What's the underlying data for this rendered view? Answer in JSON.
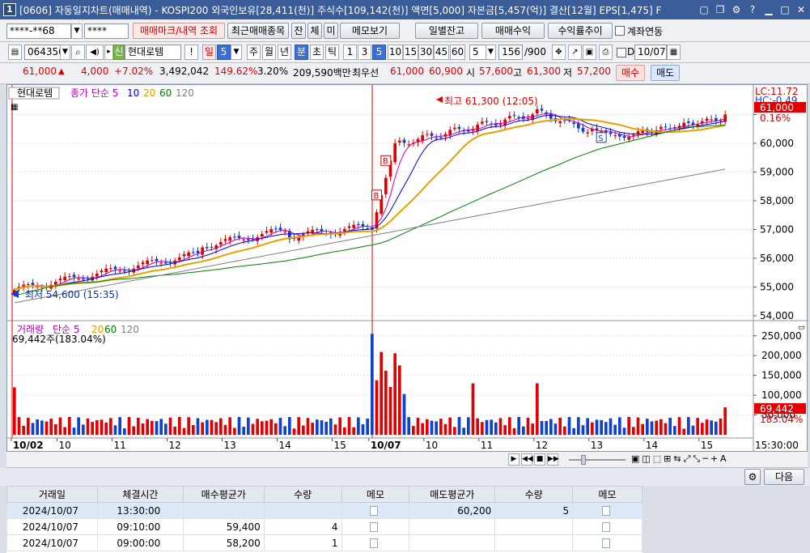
{
  "title": {
    "num": "1",
    "text": "[0606] 자동일지차트(매매내역) - KOSPI200 외국인보유[28,411(천)] 주식수[109,142(천)] 액면[5,000] 자본금[5,457(억)] 결산[12월] EPS[1,475] F"
  },
  "toolbar1": {
    "account": "****-**68",
    "password": "****",
    "btn_trade_mark": "매매마크/내역 조회",
    "btn_recent": "최근매매종목",
    "btn_jan": "잔",
    "btn_che": "체",
    "btn_mi": "미",
    "btn_memo": "메모보기",
    "btn_daily_balance": "일별잔고",
    "btn_trade_profit": "매매수익",
    "btn_return_trend": "수익률추이",
    "chk_account_link": "계좌연동"
  },
  "toolbar2": {
    "code": "064350",
    "shin": "신",
    "stock_name": "현대로템",
    "excl": "!",
    "il": "일",
    "period_num": "5",
    "ju": "주",
    "wol": "월",
    "nyeon": "년",
    "bun": "분",
    "cho": "초",
    "tik": "틱",
    "intervals": [
      "1",
      "3",
      "5",
      "10",
      "15",
      "30",
      "45",
      "60"
    ],
    "interval_sel": "5",
    "count": "156",
    "count_max": "/900",
    "date": "10/07"
  },
  "quote": {
    "price": "61,000",
    "change": "4,000",
    "change_pct": "+7.02%",
    "volume": "3,492,042",
    "vol_ratio": "149.62%",
    "turnover": "3.20%",
    "amount": "209,590백만",
    "best_label": "최우선",
    "ask1": "61,000",
    "bid1": "60,900",
    "open_label": "시",
    "open": "57,600",
    "high_label": "고",
    "high": "61,300",
    "low_label": "저",
    "low": "57,200",
    "buy": "매수",
    "sell": "매도"
  },
  "chart": {
    "price_legend_name": "현대로템",
    "price_legend_ma": "종가 단순 5",
    "ma_periods": [
      "10",
      "20",
      "60",
      "120"
    ],
    "vol_legend_name": "거래량",
    "vol_legend_ma": "단순 5",
    "vol_info": "69,442주(183.04%)",
    "high_note": "최고 61,300 (12:05)",
    "low_note": "최저 54,600 (15:35)",
    "lc": "LC:11.72",
    "hc": "HC:-0.49",
    "cur_price_tag": "61,000",
    "cur_pct": "0.16%",
    "cur_vol_tag": "69,442",
    "cur_vol_pct": "183.04%",
    "time_label": "15:30:00",
    "price_ticks": [
      "61,000",
      "60,000",
      "59,000",
      "58,000",
      "57,000",
      "56,000",
      "55,000",
      "54,000"
    ],
    "vol_ticks": [
      "250,000",
      "200,000",
      "150,000",
      "100,000",
      "50,000"
    ],
    "x_labels": [
      "10/02",
      "10",
      "11",
      "12",
      "13",
      "14",
      "15",
      "10/07",
      "10",
      "11",
      "12",
      "13",
      "14",
      "15"
    ],
    "next_btn": "다음"
  },
  "chart_data": {
    "type": "candlestick",
    "title": "현대로템",
    "x": [
      "10/02",
      "10/07"
    ],
    "ylim": [
      54000,
      61800
    ],
    "high": 61300,
    "low": 54600,
    "last": 61000,
    "volume_ylim": [
      0,
      270000
    ],
    "volume_last": 69442
  },
  "grid": {
    "headers": [
      "거래일",
      "체결시간",
      "매수평균가",
      "수량",
      "메모",
      "매도평균가",
      "수량",
      "메모"
    ],
    "rows": [
      [
        "2024/10/07",
        "13:30:00",
        "",
        "",
        "",
        "60,200",
        "5",
        ""
      ],
      [
        "2024/10/07",
        "09:10:00",
        "59,400",
        "4",
        "",
        "",
        "",
        ""
      ],
      [
        "2024/10/07",
        "09:00:00",
        "58,200",
        "1",
        "",
        "",
        "",
        ""
      ]
    ]
  },
  "colors": {
    "up": "#e00000",
    "down": "#1040d0",
    "ma5": "#c000c0",
    "ma10": "#0000c8",
    "ma20": "#e8a000",
    "ma60": "#008000",
    "ma120": "#808080"
  }
}
